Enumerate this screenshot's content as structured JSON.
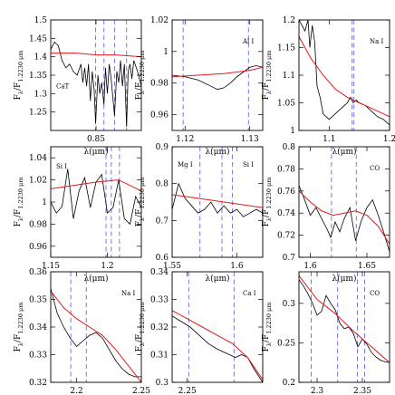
{
  "colors": {
    "observed": "#000000",
    "model": "#e41a1c",
    "marker": "#6a6ad8"
  },
  "chart_data": [
    {
      "type": "line",
      "label": "CaT",
      "label_pos": "left",
      "xlim": [
        0.826,
        0.874
      ],
      "ylim": [
        1.2,
        1.5
      ],
      "xticks": [
        0.85
      ],
      "xtick_labels": [
        "0.85"
      ],
      "yticks": [
        1.25,
        1.3,
        1.35,
        1.4,
        1.45,
        1.5
      ],
      "ytick_labels": [
        "1.25",
        "1.3",
        "1.35",
        "1.4",
        "1.45",
        "1.5"
      ],
      "xlabel": "λ(μm)",
      "ylabel": "Fλ/F1.2230 μm",
      "markers": [
        0.8498,
        0.8542,
        0.8598,
        0.8662
      ],
      "series": [
        {
          "role": "observed",
          "x": [
            0.826,
            0.828,
            0.83,
            0.832,
            0.834,
            0.836,
            0.838,
            0.84,
            0.842,
            0.843,
            0.844,
            0.845,
            0.846,
            0.847,
            0.848,
            0.849,
            0.8498,
            0.851,
            0.852,
            0.853,
            0.8542,
            0.855,
            0.856,
            0.857,
            0.858,
            0.8598,
            0.861,
            0.862,
            0.863,
            0.864,
            0.865,
            0.8662,
            0.867,
            0.868,
            0.869,
            0.87,
            0.872,
            0.874
          ],
          "y": [
            1.42,
            1.44,
            1.43,
            1.39,
            1.37,
            1.38,
            1.36,
            1.35,
            1.38,
            1.33,
            1.37,
            1.32,
            1.38,
            1.28,
            1.36,
            1.31,
            1.22,
            1.35,
            1.3,
            1.33,
            1.27,
            1.37,
            1.3,
            1.38,
            1.34,
            1.24,
            1.36,
            1.33,
            1.39,
            1.32,
            1.38,
            1.21,
            1.36,
            1.38,
            1.34,
            1.39,
            1.36,
            1.32
          ]
        },
        {
          "role": "model",
          "x": [
            0.826,
            0.84,
            0.85,
            0.86,
            0.874
          ],
          "y": [
            1.41,
            1.41,
            1.405,
            1.405,
            1.4
          ]
        }
      ]
    },
    {
      "type": "line",
      "label": "Al I",
      "label_pos": "right",
      "xlim": [
        1.118,
        1.132
      ],
      "ylim": [
        0.95,
        1.02
      ],
      "xticks": [
        1.12,
        1.13
      ],
      "xtick_labels": [
        "1.12",
        "1.13"
      ],
      "yticks": [
        0.96,
        0.98,
        1.0,
        1.02
      ],
      "ytick_labels": [
        "0.96",
        "0.98",
        "1",
        "1.02"
      ],
      "xlabel": "λ(μm)",
      "ylabel": "Fλ/F1.2230 μm",
      "markers": [
        1.1197,
        1.1298
      ],
      "series": [
        {
          "role": "observed",
          "x": [
            1.118,
            1.12,
            1.122,
            1.124,
            1.125,
            1.126,
            1.127,
            1.128,
            1.129,
            1.13,
            1.131,
            1.132
          ],
          "y": [
            0.985,
            0.984,
            0.982,
            0.978,
            0.976,
            0.977,
            0.98,
            0.984,
            0.987,
            0.99,
            0.991,
            0.99
          ]
        },
        {
          "role": "model",
          "x": [
            1.118,
            1.122,
            1.126,
            1.13,
            1.132
          ],
          "y": [
            0.984,
            0.985,
            0.986,
            0.988,
            0.99
          ]
        }
      ]
    },
    {
      "type": "line",
      "label": "Na I",
      "label_pos": "right",
      "xlim": [
        1.05,
        1.2
      ],
      "ylim": [
        1.0,
        1.2
      ],
      "xticks": [
        1.1,
        1.2
      ],
      "xtick_labels": [
        "1.1",
        "1.2"
      ],
      "yticks": [
        1.0,
        1.05,
        1.1,
        1.15,
        1.2
      ],
      "ytick_labels": [
        "1",
        "1.05",
        "1.1",
        "1.15",
        "1.2"
      ],
      "xlabel": "λ(μm)",
      "ylabel": "Fλ/F1.2230 μm",
      "markers": [
        1.138,
        1.141
      ],
      "series": [
        {
          "role": "observed",
          "x": [
            1.05,
            1.055,
            1.06,
            1.065,
            1.068,
            1.072,
            1.076,
            1.08,
            1.085,
            1.09,
            1.1,
            1.11,
            1.12,
            1.13,
            1.135,
            1.14,
            1.145,
            1.15,
            1.16,
            1.17,
            1.18,
            1.19,
            1.2
          ],
          "y": [
            1.2,
            1.19,
            1.18,
            1.2,
            1.15,
            1.19,
            1.16,
            1.08,
            1.06,
            1.03,
            1.02,
            1.03,
            1.04,
            1.05,
            1.06,
            1.05,
            1.055,
            1.05,
            1.045,
            1.035,
            1.025,
            1.02,
            1.01
          ]
        },
        {
          "role": "model",
          "x": [
            1.05,
            1.07,
            1.09,
            1.11,
            1.13,
            1.15,
            1.17,
            1.19,
            1.2
          ],
          "y": [
            1.17,
            1.13,
            1.1,
            1.075,
            1.06,
            1.05,
            1.04,
            1.03,
            1.025
          ]
        }
      ]
    },
    {
      "type": "line",
      "label": "Si I",
      "label_pos": "left",
      "xlim": [
        1.15,
        1.23
      ],
      "ylim": [
        0.95,
        1.05
      ],
      "xticks": [
        1.15,
        1.2
      ],
      "xtick_labels": [
        "1.15",
        "1.2"
      ],
      "yticks": [
        0.96,
        0.98,
        1.0,
        1.02,
        1.04
      ],
      "ytick_labels": [
        "0.96",
        "0.98",
        "1",
        "1.02",
        "1.04"
      ],
      "xlabel": "λ(μm)",
      "ylabel": "Fλ/F1.2230 μm",
      "markers": [
        1.1988,
        1.2035,
        1.2107
      ],
      "series": [
        {
          "role": "observed",
          "x": [
            1.15,
            1.155,
            1.16,
            1.165,
            1.17,
            1.175,
            1.18,
            1.185,
            1.19,
            1.195,
            1.2,
            1.205,
            1.21,
            1.215,
            1.22,
            1.225,
            1.23
          ],
          "y": [
            1.0,
            0.99,
            0.996,
            1.03,
            0.985,
            1.01,
            1.022,
            0.995,
            1.018,
            1.025,
            0.99,
            0.995,
            1.02,
            0.985,
            0.98,
            1.005,
            0.995
          ]
        },
        {
          "role": "model",
          "x": [
            1.15,
            1.17,
            1.19,
            1.21,
            1.23
          ],
          "y": [
            1.012,
            1.015,
            1.018,
            1.02,
            1.01
          ]
        }
      ]
    },
    {
      "type": "line",
      "label": "Mg I",
      "label2": "Si I",
      "label_pos": "split",
      "xlim": [
        1.55,
        1.62
      ],
      "ylim": [
        0.6,
        0.9
      ],
      "xticks": [
        1.55,
        1.6
      ],
      "xtick_labels": [
        "1.55",
        "1.6"
      ],
      "yticks": [
        0.6,
        0.7,
        0.8,
        0.9
      ],
      "ytick_labels": [
        "0.6",
        "0.7",
        "0.8",
        "0.9"
      ],
      "xlabel": "λ(μm)",
      "ylabel": "Fλ/F1.2230 μm",
      "markers": [
        1.5715,
        1.5885,
        1.5965
      ],
      "series": [
        {
          "role": "observed",
          "x": [
            1.55,
            1.555,
            1.56,
            1.565,
            1.57,
            1.575,
            1.58,
            1.585,
            1.59,
            1.595,
            1.6,
            1.605,
            1.61,
            1.615,
            1.62
          ],
          "y": [
            0.73,
            0.8,
            0.76,
            0.74,
            0.72,
            0.73,
            0.75,
            0.72,
            0.74,
            0.72,
            0.73,
            0.71,
            0.72,
            0.73,
            0.72
          ]
        },
        {
          "role": "model",
          "x": [
            1.55,
            1.57,
            1.59,
            1.61,
            1.62
          ],
          "y": [
            0.77,
            0.76,
            0.75,
            0.74,
            0.735
          ]
        }
      ]
    },
    {
      "type": "line",
      "label": "CO",
      "label_pos": "right",
      "xlim": [
        1.59,
        1.67
      ],
      "ylim": [
        0.7,
        0.8
      ],
      "xticks": [
        1.6,
        1.65
      ],
      "xtick_labels": [
        "1.6",
        "1.65"
      ],
      "yticks": [
        0.7,
        0.72,
        0.74,
        0.76,
        0.78,
        0.8
      ],
      "ytick_labels": [
        "0.7",
        "0.72",
        "0.74",
        "0.76",
        "0.78",
        "0.8"
      ],
      "xlabel": "λ(μm)",
      "ylabel": "Fλ/F1.2230 μm",
      "markers": [
        1.6187,
        1.6406
      ],
      "series": [
        {
          "role": "observed",
          "x": [
            1.59,
            1.595,
            1.6,
            1.605,
            1.61,
            1.615,
            1.618,
            1.622,
            1.626,
            1.63,
            1.635,
            1.64,
            1.645,
            1.65,
            1.655,
            1.66,
            1.665,
            1.67
          ],
          "y": [
            0.765,
            0.752,
            0.738,
            0.745,
            0.735,
            0.725,
            0.718,
            0.732,
            0.723,
            0.735,
            0.745,
            0.715,
            0.733,
            0.745,
            0.752,
            0.738,
            0.722,
            0.705
          ]
        },
        {
          "role": "model",
          "x": [
            1.59,
            1.6,
            1.61,
            1.62,
            1.63,
            1.64,
            1.65,
            1.66,
            1.67
          ],
          "y": [
            0.76,
            0.75,
            0.742,
            0.738,
            0.74,
            0.742,
            0.738,
            0.728,
            0.712
          ]
        }
      ]
    },
    {
      "type": "line",
      "label": "Na I",
      "label_pos": "right",
      "xlim": [
        2.18,
        2.25
      ],
      "ylim": [
        0.32,
        0.36
      ],
      "xticks": [
        2.2,
        2.25
      ],
      "xtick_labels": [
        "2.2",
        "2.25"
      ],
      "yticks": [
        0.32,
        0.33,
        0.34,
        0.35,
        0.36
      ],
      "ytick_labels": [
        "0.32",
        "0.33",
        "0.34",
        "0.35",
        "0.36"
      ],
      "xlabel": "λ(μm)",
      "ylabel": "Fλ/F1.2230 μm",
      "markers": [
        2.1955,
        2.2075
      ],
      "series": [
        {
          "role": "observed",
          "x": [
            2.18,
            2.185,
            2.19,
            2.195,
            2.2,
            2.205,
            2.21,
            2.215,
            2.22,
            2.225,
            2.23,
            2.235,
            2.24,
            2.245,
            2.25
          ],
          "y": [
            0.354,
            0.345,
            0.34,
            0.336,
            0.333,
            0.335,
            0.337,
            0.338,
            0.336,
            0.332,
            0.328,
            0.325,
            0.323,
            0.322,
            0.322
          ]
        },
        {
          "role": "model",
          "x": [
            2.18,
            2.19,
            2.2,
            2.21,
            2.22,
            2.23,
            2.24,
            2.25
          ],
          "y": [
            0.353,
            0.347,
            0.343,
            0.34,
            0.337,
            0.332,
            0.326,
            0.32
          ]
        }
      ]
    },
    {
      "type": "line",
      "label": "Ca I",
      "label_pos": "right",
      "xlim": [
        2.245,
        2.275
      ],
      "ylim": [
        0.3,
        0.34
      ],
      "xticks": [
        2.25
      ],
      "xtick_labels": [
        "2.25"
      ],
      "yticks": [
        0.3,
        0.31,
        0.32,
        0.33,
        0.34
      ],
      "ytick_labels": [
        "0.3",
        "0.31",
        "0.32",
        "0.33",
        "0.34"
      ],
      "xlabel": "λ(μm)",
      "ylabel": "Fλ/F1.2230 μm",
      "markers": [
        2.2505,
        2.2655
      ],
      "series": [
        {
          "role": "observed",
          "x": [
            2.245,
            2.248,
            2.251,
            2.254,
            2.257,
            2.26,
            2.262,
            2.264,
            2.266,
            2.268,
            2.27,
            2.272,
            2.275
          ],
          "y": [
            0.324,
            0.322,
            0.32,
            0.317,
            0.314,
            0.312,
            0.311,
            0.31,
            0.309,
            0.31,
            0.309,
            0.305,
            0.3
          ]
        },
        {
          "role": "model",
          "x": [
            2.245,
            2.25,
            2.255,
            2.26,
            2.265,
            2.27,
            2.275
          ],
          "y": [
            0.326,
            0.323,
            0.32,
            0.317,
            0.314,
            0.309,
            0.301
          ]
        }
      ]
    },
    {
      "type": "line",
      "label": "CO",
      "label_pos": "right",
      "xlim": [
        2.28,
        2.38
      ],
      "ylim": [
        0.2,
        0.34
      ],
      "xticks": [
        2.3,
        2.35
      ],
      "xtick_labels": [
        "2.3",
        "2.35"
      ],
      "yticks": [
        0.2,
        0.25,
        0.3
      ],
      "ytick_labels": [
        "0.2",
        "0.25",
        "0.3"
      ],
      "xlabel": "λ(μm)",
      "ylabel": "Fλ/F1.2230 μm",
      "markers": [
        2.2935,
        2.3227,
        2.3525,
        2.3829,
        2.3445
      ],
      "series": [
        {
          "role": "observed",
          "x": [
            2.28,
            2.285,
            2.29,
            2.295,
            2.3,
            2.305,
            2.31,
            2.315,
            2.32,
            2.325,
            2.33,
            2.335,
            2.34,
            2.345,
            2.35,
            2.355,
            2.36,
            2.365,
            2.37,
            2.375,
            2.38
          ],
          "y": [
            0.33,
            0.322,
            0.312,
            0.3,
            0.285,
            0.29,
            0.31,
            0.3,
            0.292,
            0.275,
            0.268,
            0.27,
            0.262,
            0.245,
            0.255,
            0.248,
            0.238,
            0.232,
            0.228,
            0.226,
            0.225
          ]
        },
        {
          "role": "model",
          "x": [
            2.28,
            2.3,
            2.32,
            2.34,
            2.36,
            2.38
          ],
          "y": [
            0.335,
            0.305,
            0.287,
            0.265,
            0.245,
            0.225
          ]
        }
      ]
    }
  ]
}
